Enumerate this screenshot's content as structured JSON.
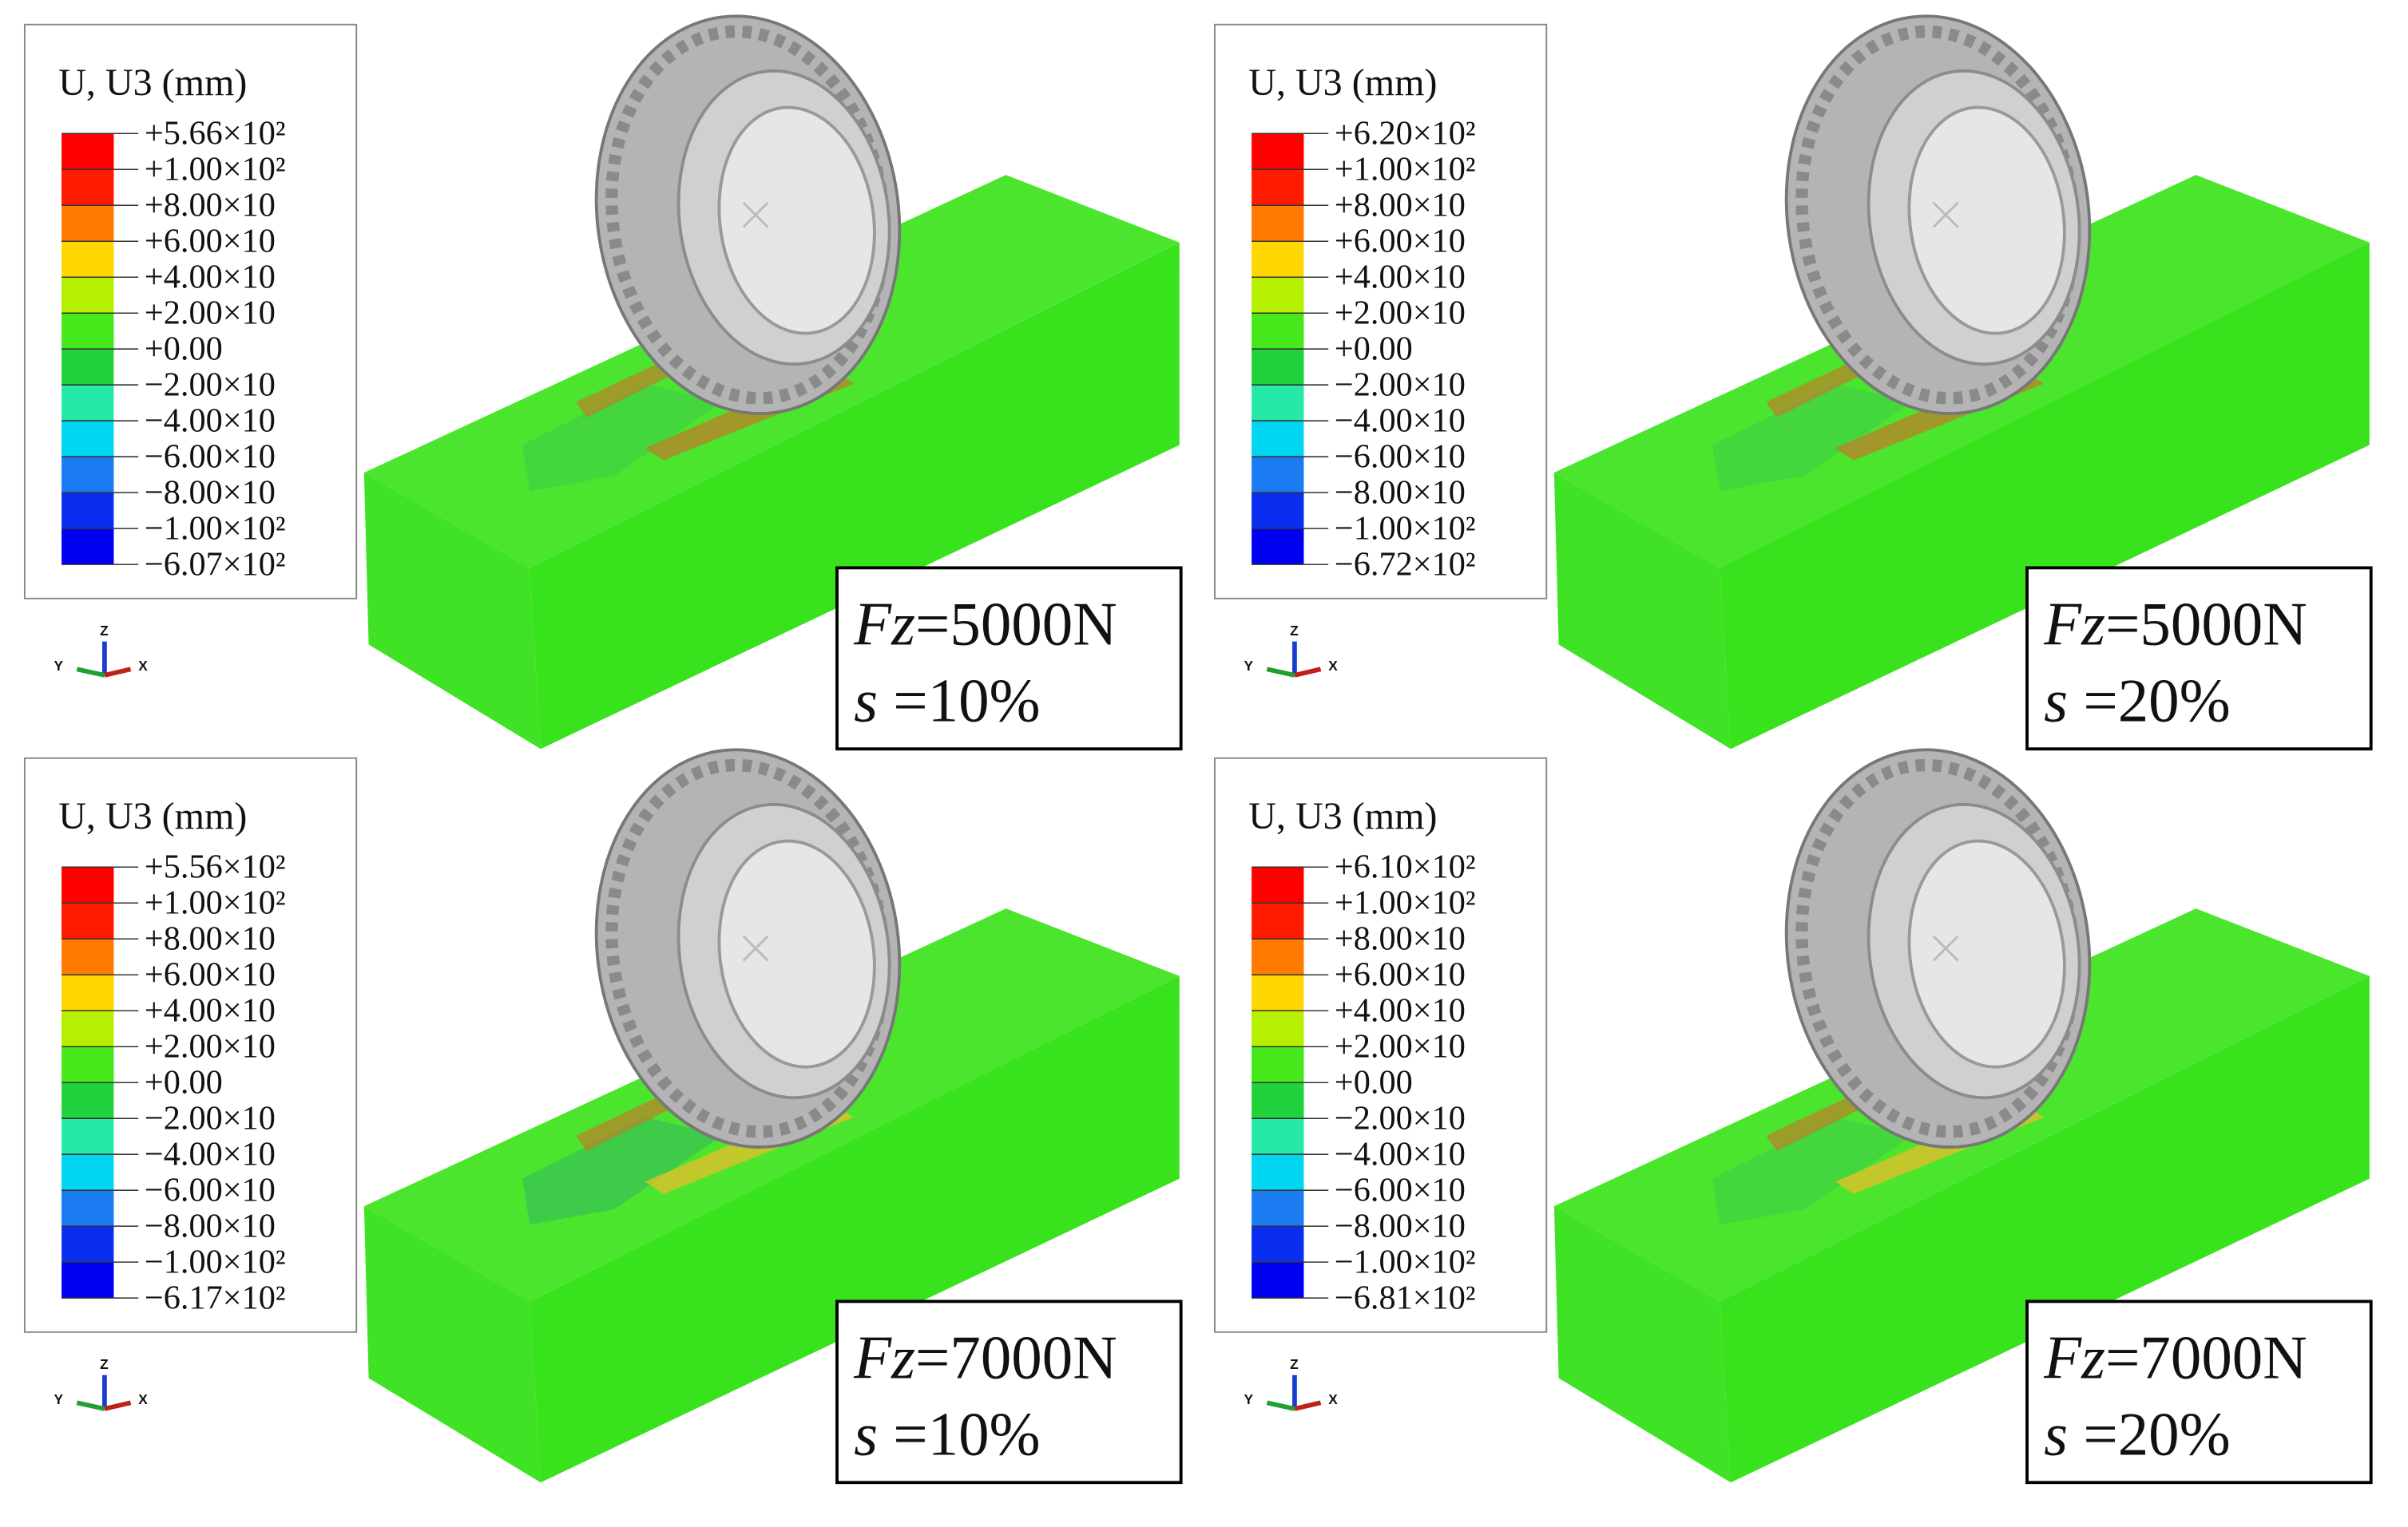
{
  "panels": [
    {
      "legend_title": "U, U3 (mm)",
      "legend_labels": [
        "+5.66×10²",
        "+1.00×10²",
        "+8.00×10",
        "+6.00×10",
        "+4.00×10",
        "+2.00×10",
        "+0.00",
        "−2.00×10",
        "−4.00×10",
        "−6.00×10",
        "−8.00×10",
        "−1.00×10²",
        "−6.07×10²"
      ],
      "load": {
        "symbol": "Fz",
        "text": "=5000N"
      },
      "slip": {
        "symbol": "s",
        "text": " =10%"
      },
      "triad": {
        "z": "Z",
        "y": "Y",
        "x": "X"
      }
    },
    {
      "legend_title": "U, U3 (mm)",
      "legend_labels": [
        "+6.20×10²",
        "+1.00×10²",
        "+8.00×10",
        "+6.00×10",
        "+4.00×10",
        "+2.00×10",
        "+0.00",
        "−2.00×10",
        "−4.00×10",
        "−6.00×10",
        "−8.00×10",
        "−1.00×10²",
        "−6.72×10²"
      ],
      "load": {
        "symbol": "Fz",
        "text": "=5000N"
      },
      "slip": {
        "symbol": "s",
        "text": " =20%"
      },
      "triad": {
        "z": "Z",
        "y": "Y",
        "x": "X"
      }
    },
    {
      "legend_title": "U, U3 (mm)",
      "legend_labels": [
        "+5.56×10²",
        "+1.00×10²",
        "+8.00×10",
        "+6.00×10",
        "+4.00×10",
        "+2.00×10",
        "+0.00",
        "−2.00×10",
        "−4.00×10",
        "−6.00×10",
        "−8.00×10",
        "−1.00×10²",
        "−6.17×10²"
      ],
      "load": {
        "symbol": "Fz",
        "text": "=7000N"
      },
      "slip": {
        "symbol": "s",
        "text": " =10%"
      },
      "triad": {
        "z": "Z",
        "y": "Y",
        "x": "X"
      }
    },
    {
      "legend_title": "U, U3 (mm)",
      "legend_labels": [
        "+6.10×10²",
        "+1.00×10²",
        "+8.00×10",
        "+6.00×10",
        "+4.00×10",
        "+2.00×10",
        "+0.00",
        "−2.00×10",
        "−4.00×10",
        "−6.00×10",
        "−8.00×10",
        "−1.00×10²",
        "−6.81×10²"
      ],
      "load": {
        "symbol": "Fz",
        "text": "=7000N"
      },
      "slip": {
        "symbol": "s",
        "text": " =20%"
      },
      "triad": {
        "z": "Z",
        "y": "Y",
        "x": "X"
      }
    }
  ]
}
